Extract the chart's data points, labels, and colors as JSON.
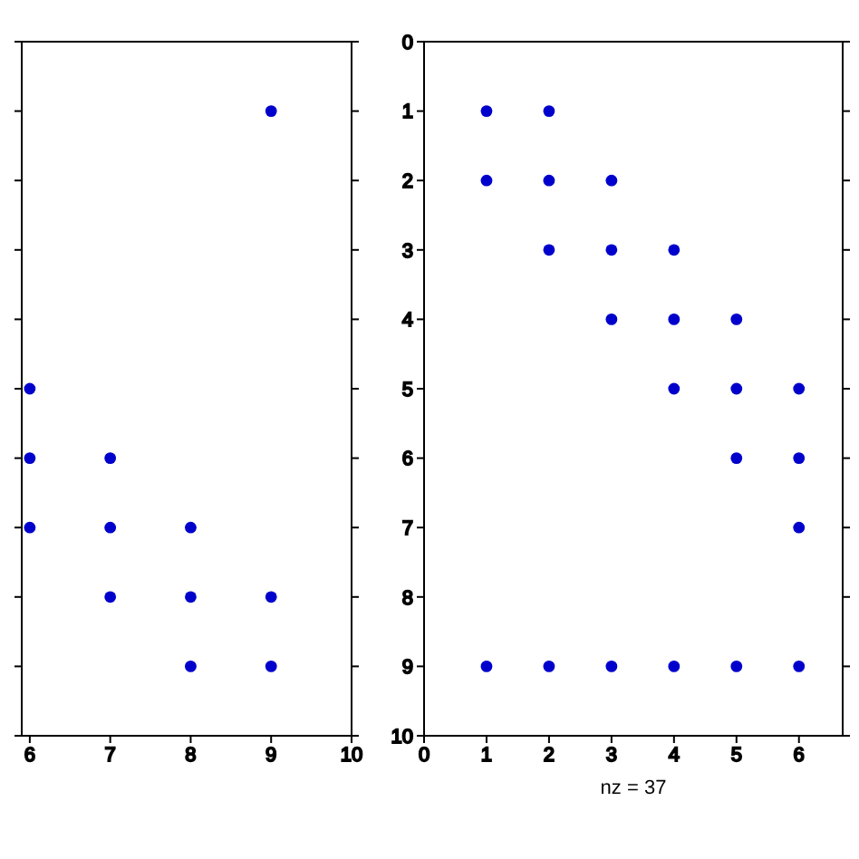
{
  "chart_data": [
    {
      "type": "scatter",
      "xlim": [
        5.9,
        10
      ],
      "xticks": [
        6,
        7,
        8,
        9,
        10
      ],
      "ylim": [
        10,
        0
      ],
      "yticks": [
        0,
        1,
        2,
        3,
        4,
        5,
        6,
        7,
        8,
        9,
        10
      ],
      "tick_labels": "x",
      "grid": false,
      "legend": false,
      "marker": "circle",
      "series": [
        {
          "color": "#0000cc",
          "x": [
            9,
            6,
            6,
            7,
            6,
            7,
            8,
            7,
            8,
            9,
            8,
            9
          ],
          "values": [
            1,
            5,
            6,
            6,
            7,
            7,
            7,
            8,
            8,
            8,
            9,
            9
          ]
        }
      ]
    },
    {
      "type": "scatter",
      "xlabel": "nz = 37",
      "xlim": [
        0,
        6.7
      ],
      "xticks": [
        0,
        1,
        2,
        3,
        4,
        5,
        6
      ],
      "ylim": [
        10,
        0
      ],
      "yticks": [
        0,
        1,
        2,
        3,
        4,
        5,
        6,
        7,
        8,
        9,
        10
      ],
      "grid": false,
      "legend": false,
      "marker": "circle",
      "series": [
        {
          "color": "#0000cc",
          "x": [
            1,
            2,
            1,
            2,
            3,
            2,
            3,
            4,
            3,
            4,
            5,
            4,
            5,
            6,
            5,
            6,
            6,
            1,
            2,
            3,
            4,
            5,
            6
          ],
          "values": [
            1,
            1,
            2,
            2,
            2,
            3,
            3,
            3,
            4,
            4,
            4,
            5,
            5,
            5,
            6,
            6,
            7,
            9,
            9,
            9,
            9,
            9,
            9
          ]
        }
      ]
    }
  ]
}
